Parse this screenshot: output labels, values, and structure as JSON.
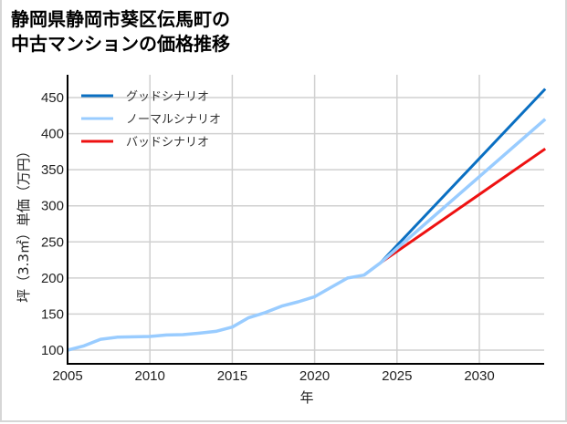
{
  "title": {
    "line1": "静岡県静岡市葵区伝馬町の",
    "line2": "中古マンションの価格推移"
  },
  "colors": {
    "good": "#0a6fc2",
    "normal": "#99ccff",
    "bad": "#ee1111",
    "grid": "#d0d0d0",
    "axis": "#000000"
  },
  "chart_data": {
    "type": "line",
    "title": "静岡県静岡市葵区伝馬町の中古マンションの価格推移",
    "xlabel": "年",
    "ylabel": "坪（3.3㎡）単価（万円）",
    "xlim": [
      2005,
      2034
    ],
    "ylim": [
      80,
      480
    ],
    "xticks": [
      2005,
      2010,
      2015,
      2020,
      2025,
      2030
    ],
    "yticks": [
      100,
      150,
      200,
      250,
      300,
      350,
      400,
      450
    ],
    "grid": true,
    "legend_position": "upper left",
    "series": [
      {
        "name": "グッドシナリオ",
        "color": "#0a6fc2",
        "x": [
          2024,
          2034
        ],
        "values": [
          221,
          462
        ]
      },
      {
        "name": "ノーマルシナリオ",
        "color": "#99ccff",
        "x": [
          2005,
          2006,
          2007,
          2008,
          2009,
          2010,
          2011,
          2012,
          2013,
          2014,
          2015,
          2016,
          2017,
          2018,
          2019,
          2020,
          2021,
          2022,
          2023,
          2024,
          2034
        ],
        "values": [
          100,
          106,
          115,
          118,
          118.5,
          119,
          121,
          121.5,
          123.5,
          126,
          132,
          145,
          152,
          161,
          167,
          174,
          187,
          200,
          204,
          221,
          420
        ]
      },
      {
        "name": "バッドシナリオ",
        "color": "#ee1111",
        "x": [
          2024,
          2034
        ],
        "values": [
          221,
          379
        ]
      }
    ]
  }
}
